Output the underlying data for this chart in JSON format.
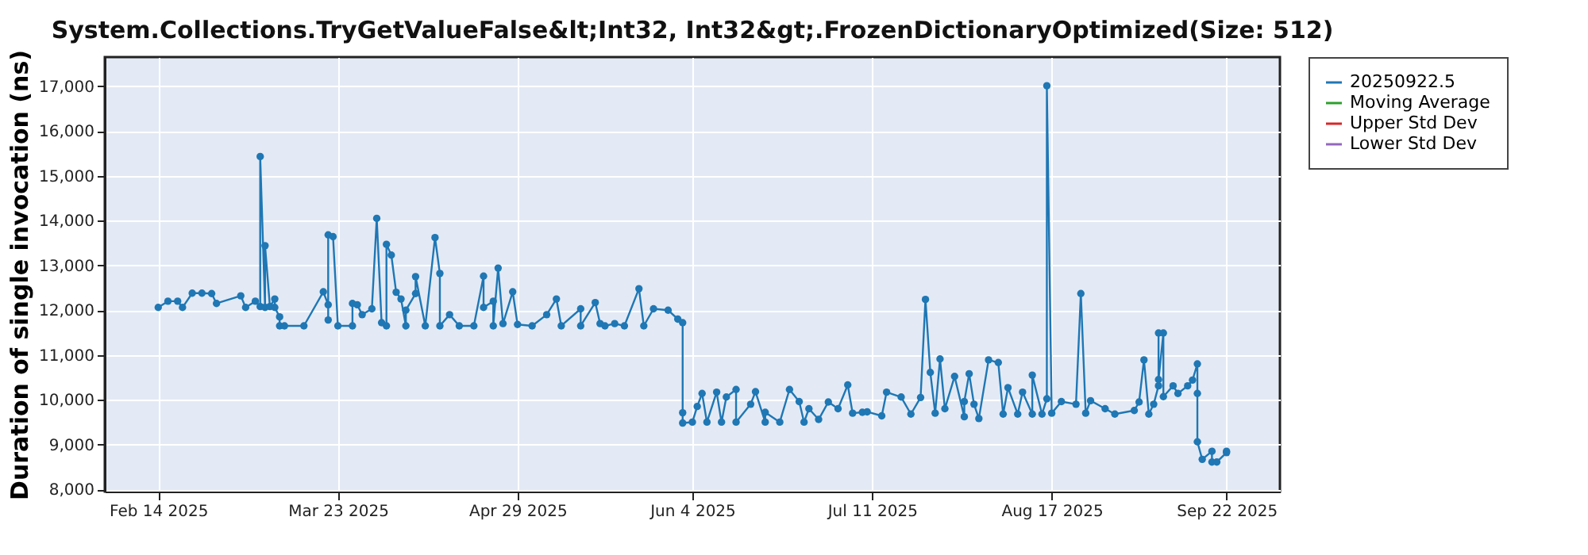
{
  "chart_data": {
    "type": "line",
    "title": "System.Collections.TryGetValueFalse&lt;Int32, Int32&gt;.FrozenDictionaryOptimized(Size: 512)",
    "ylabel": "Duration of single invocation (ns)",
    "x": [
      "2025-02-14",
      "2025-02-16",
      "2025-02-18",
      "2025-02-19",
      "2025-02-21",
      "2025-02-23",
      "2025-02-25",
      "2025-02-26",
      "2025-03-03",
      "2025-03-04",
      "2025-03-06",
      "2025-03-07",
      "2025-03-07",
      "2025-03-08",
      "2025-03-08",
      "2025-03-09",
      "2025-03-10",
      "2025-03-10",
      "2025-03-11",
      "2025-03-11",
      "2025-03-12",
      "2025-03-16",
      "2025-03-20",
      "2025-03-21",
      "2025-03-21",
      "2025-03-21",
      "2025-03-22",
      "2025-03-23",
      "2025-03-26",
      "2025-03-26",
      "2025-03-27",
      "2025-03-28",
      "2025-03-30",
      "2025-03-31",
      "2025-04-01",
      "2025-04-02",
      "2025-04-02",
      "2025-04-03",
      "2025-04-04",
      "2025-04-05",
      "2025-04-06",
      "2025-04-06",
      "2025-04-08",
      "2025-04-08",
      "2025-04-10",
      "2025-04-12",
      "2025-04-13",
      "2025-04-13",
      "2025-04-15",
      "2025-04-17",
      "2025-04-20",
      "2025-04-22",
      "2025-04-22",
      "2025-04-24",
      "2025-04-24",
      "2025-04-25",
      "2025-04-26",
      "2025-04-28",
      "2025-04-29",
      "2025-05-02",
      "2025-05-05",
      "2025-05-07",
      "2025-05-08",
      "2025-05-12",
      "2025-05-12",
      "2025-05-15",
      "2025-05-16",
      "2025-05-17",
      "2025-05-19",
      "2025-05-21",
      "2025-05-24",
      "2025-05-25",
      "2025-05-27",
      "2025-05-30",
      "2025-06-01",
      "2025-06-02",
      "2025-06-02",
      "2025-06-02",
      "2025-06-04",
      "2025-06-05",
      "2025-06-06",
      "2025-06-07",
      "2025-06-09",
      "2025-06-10",
      "2025-06-11",
      "2025-06-13",
      "2025-06-13",
      "2025-06-16",
      "2025-06-17",
      "2025-06-19",
      "2025-06-19",
      "2025-06-22",
      "2025-06-24",
      "2025-06-26",
      "2025-06-27",
      "2025-06-28",
      "2025-06-30",
      "2025-07-02",
      "2025-07-04",
      "2025-07-06",
      "2025-07-07",
      "2025-07-09",
      "2025-07-10",
      "2025-07-13",
      "2025-07-14",
      "2025-07-17",
      "2025-07-19",
      "2025-07-21",
      "2025-07-22",
      "2025-07-23",
      "2025-07-24",
      "2025-07-25",
      "2025-07-26",
      "2025-07-28",
      "2025-07-30",
      "2025-07-30",
      "2025-07-31",
      "2025-08-01",
      "2025-08-02",
      "2025-08-04",
      "2025-08-06",
      "2025-08-07",
      "2025-08-08",
      "2025-08-10",
      "2025-08-11",
      "2025-08-13",
      "2025-08-13",
      "2025-08-15",
      "2025-08-16",
      "2025-08-16",
      "2025-08-17",
      "2025-08-19",
      "2025-08-22",
      "2025-08-23",
      "2025-08-24",
      "2025-08-25",
      "2025-08-28",
      "2025-08-30",
      "2025-09-03",
      "2025-09-04",
      "2025-09-05",
      "2025-09-06",
      "2025-09-07",
      "2025-09-08",
      "2025-09-08",
      "2025-09-08",
      "2025-09-09",
      "2025-09-09",
      "2025-09-11",
      "2025-09-12",
      "2025-09-14",
      "2025-09-15",
      "2025-09-16",
      "2025-09-16",
      "2025-09-16",
      "2025-09-17",
      "2025-09-19",
      "2025-09-19",
      "2025-09-20",
      "2025-09-22",
      "2025-09-22"
    ],
    "series": [
      {
        "name": "20250922.5",
        "color": "#1f77b4",
        "values": [
          12060,
          12200,
          12200,
          12060,
          12380,
          12380,
          12370,
          12150,
          12320,
          12060,
          12200,
          12080,
          15430,
          12060,
          13440,
          12080,
          12250,
          12060,
          11850,
          11650,
          11650,
          11650,
          12410,
          12120,
          11780,
          13680,
          13640,
          11650,
          11650,
          12150,
          12120,
          11900,
          12030,
          14050,
          11720,
          11650,
          13470,
          13230,
          12400,
          12250,
          11650,
          12000,
          12370,
          12750,
          11650,
          13620,
          12820,
          11650,
          11900,
          11650,
          11650,
          12760,
          12060,
          12200,
          11650,
          12940,
          11700,
          12410,
          11680,
          11650,
          11900,
          12250,
          11650,
          12030,
          11650,
          12170,
          11700,
          11650,
          11700,
          11650,
          12480,
          11650,
          12030,
          12000,
          11800,
          11720,
          9710,
          9480,
          9500,
          9850,
          10140,
          9500,
          10170,
          9500,
          10060,
          10230,
          9500,
          9900,
          10180,
          9500,
          9720,
          9500,
          10230,
          9960,
          9500,
          9800,
          9560,
          9950,
          9800,
          10330,
          9700,
          9720,
          9730,
          9640,
          10170,
          10060,
          9680,
          10050,
          12240,
          10610,
          9700,
          10910,
          9800,
          10520,
          9620,
          9960,
          10580,
          9900,
          9580,
          10890,
          10830,
          9680,
          10270,
          9680,
          10170,
          9680,
          10550,
          9680,
          10020,
          17010,
          9700,
          9960,
          9900,
          12370,
          9700,
          9980,
          9800,
          9680,
          9760,
          9950,
          10890,
          9680,
          9900,
          10310,
          11490,
          10450,
          11490,
          10070,
          10310,
          10140,
          10310,
          10440,
          10800,
          10140,
          9060,
          8670,
          8850,
          8610,
          8610,
          8820,
          8850
        ]
      },
      {
        "name": "Moving Average",
        "color": "#2ca02c",
        "values": [
          null,
          null,
          null,
          null,
          null,
          null,
          null,
          null,
          null,
          null,
          null,
          null,
          null,
          null,
          null,
          null,
          null,
          null,
          null,
          null,
          null,
          null,
          null,
          null,
          null,
          null,
          null,
          null,
          null,
          null,
          null,
          null,
          null,
          null,
          null,
          null,
          null,
          null,
          null,
          null,
          null,
          null,
          null,
          null,
          null,
          null,
          null,
          null,
          null,
          null,
          null,
          null,
          null,
          null,
          null,
          null,
          null,
          null,
          null,
          null,
          null,
          null,
          null,
          null,
          null,
          null,
          null,
          null,
          null,
          null,
          null,
          null,
          null,
          null,
          null,
          null,
          null,
          null,
          null,
          null,
          null,
          null,
          null,
          null,
          null,
          null,
          null,
          null,
          null,
          null,
          null,
          null,
          null,
          null,
          null,
          null,
          null,
          null,
          null,
          null,
          null,
          null,
          null,
          null,
          null,
          null,
          null,
          null,
          null,
          null,
          null,
          null,
          null,
          null,
          null,
          null,
          null,
          null,
          null,
          null,
          null,
          null,
          null,
          null,
          null,
          null,
          null,
          null,
          null,
          null,
          null,
          null,
          null,
          null,
          null,
          null,
          null,
          null,
          null,
          null,
          null,
          null,
          null,
          null,
          null,
          null,
          null,
          null,
          null,
          null,
          null,
          null,
          null,
          null,
          null,
          null,
          null,
          null,
          null,
          null,
          null
        ]
      },
      {
        "name": "Upper Std Dev",
        "color": "#d62728",
        "values": [
          null,
          null,
          null,
          null,
          null,
          null,
          null,
          null,
          null,
          null,
          null,
          null,
          null,
          null,
          null,
          null,
          null,
          null,
          null,
          null,
          null,
          null,
          null,
          null,
          null,
          null,
          null,
          null,
          null,
          null,
          null,
          null,
          null,
          null,
          null,
          null,
          null,
          null,
          null,
          null,
          null,
          null,
          null,
          null,
          null,
          null,
          null,
          null,
          null,
          null,
          null,
          null,
          null,
          null,
          null,
          null,
          null,
          null,
          null,
          null,
          null,
          null,
          null,
          null,
          null,
          null,
          null,
          null,
          null,
          null,
          null,
          null,
          null,
          null,
          null,
          null,
          null,
          null,
          null,
          null,
          null,
          null,
          null,
          null,
          null,
          null,
          null,
          null,
          null,
          null,
          null,
          null,
          null,
          null,
          null,
          null,
          null,
          null,
          null,
          null,
          null,
          null,
          null,
          null,
          null,
          null,
          null,
          null,
          null,
          null,
          null,
          null,
          null,
          null,
          null,
          null,
          null,
          null,
          null,
          null,
          null,
          null,
          null,
          null,
          null,
          null,
          null,
          null,
          null,
          null,
          null,
          null,
          null,
          null,
          null,
          null,
          null,
          null,
          null,
          null,
          null,
          null,
          null,
          null,
          null,
          null,
          null,
          null,
          null,
          null,
          null,
          null,
          null,
          null,
          null,
          null,
          null,
          null,
          null,
          null,
          null
        ]
      },
      {
        "name": "Lower Std Dev",
        "color": "#9467bd",
        "values": [
          null,
          null,
          null,
          null,
          null,
          null,
          null,
          null,
          null,
          null,
          null,
          null,
          null,
          null,
          null,
          null,
          null,
          null,
          null,
          null,
          null,
          null,
          null,
          null,
          null,
          null,
          null,
          null,
          null,
          null,
          null,
          null,
          null,
          null,
          null,
          null,
          null,
          null,
          null,
          null,
          null,
          null,
          null,
          null,
          null,
          null,
          null,
          null,
          null,
          null,
          null,
          null,
          null,
          null,
          null,
          null,
          null,
          null,
          null,
          null,
          null,
          null,
          null,
          null,
          null,
          null,
          null,
          null,
          null,
          null,
          null,
          null,
          null,
          null,
          null,
          null,
          null,
          null,
          null,
          null,
          null,
          null,
          null,
          null,
          null,
          null,
          null,
          null,
          null,
          null,
          null,
          null,
          null,
          null,
          null,
          null,
          null,
          null,
          null,
          null,
          null,
          null,
          null,
          null,
          null,
          null,
          null,
          null,
          null,
          null,
          null,
          null,
          null,
          null,
          null,
          null,
          null,
          null,
          null,
          null,
          null,
          null,
          null,
          null,
          null,
          null,
          null,
          null,
          null,
          null,
          null,
          null,
          null,
          null,
          null,
          null,
          null,
          null,
          null,
          null,
          null,
          null,
          null,
          null,
          null,
          null,
          null,
          null,
          null,
          null,
          null,
          null,
          null,
          null,
          null,
          null,
          null,
          null,
          null,
          null,
          null
        ]
      }
    ],
    "xlim": [
      "2025-02-03",
      "2025-10-03"
    ],
    "xticks": [
      {
        "value": "2025-02-14",
        "label": "Feb 14 2025"
      },
      {
        "value": "2025-03-23",
        "label": "Mar 23 2025"
      },
      {
        "value": "2025-04-29",
        "label": "Apr 29 2025"
      },
      {
        "value": "2025-06-04",
        "label": "Jun 4 2025"
      },
      {
        "value": "2025-07-11",
        "label": "Jul 11 2025"
      },
      {
        "value": "2025-08-17",
        "label": "Aug 17 2025"
      },
      {
        "value": "2025-09-22",
        "label": "Sep 22 2025"
      }
    ],
    "ylim": [
      7950,
      17650
    ],
    "yticks": [
      {
        "value": 8000,
        "label": "8,000"
      },
      {
        "value": 9000,
        "label": "9,000"
      },
      {
        "value": 10000,
        "label": "10,000"
      },
      {
        "value": 11000,
        "label": "11,000"
      },
      {
        "value": 12000,
        "label": "12,000"
      },
      {
        "value": 13000,
        "label": "13,000"
      },
      {
        "value": 14000,
        "label": "14,000"
      },
      {
        "value": 15000,
        "label": "15,000"
      },
      {
        "value": 16000,
        "label": "16,000"
      },
      {
        "value": 17000,
        "label": "17,000"
      }
    ],
    "grid": true,
    "legend": "right",
    "marker": "circle",
    "line_style": "solid"
  }
}
